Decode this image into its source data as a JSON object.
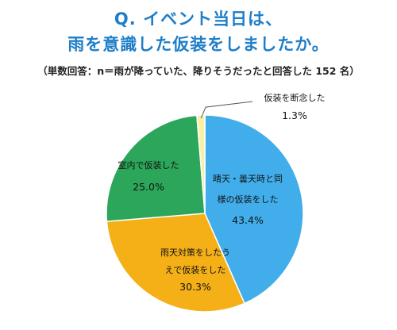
{
  "title_line1": "Q. イベント当日は、",
  "title_line2": "雨を意識した仮装をしましたか。",
  "subtitle": "（単数回答：n＝雨が降っていた、降りそうだったと回答した 152 名）",
  "colors": {
    "title": "#1E7EC8",
    "slice_1": "#41AEEB",
    "slice_2": "#F5B017",
    "slice_3": "#2BA65A",
    "slice_4": "#F7F1A6",
    "leader": "#555555"
  },
  "chart_data": {
    "type": "pie",
    "start_angle_deg": 0,
    "direction": "clockwise",
    "slices": [
      {
        "label_lines": [
          "晴天・曇天時と同",
          "様の仮装をした"
        ],
        "value": 43.4,
        "value_text": "43.4%",
        "color_key": "slice_1"
      },
      {
        "label_lines": [
          "雨天対策をしたう",
          "えで仮装をした"
        ],
        "value": 30.3,
        "value_text": "30.3%",
        "color_key": "slice_2"
      },
      {
        "label_lines": [
          "室内で仮装した"
        ],
        "value": 25.0,
        "value_text": "25.0%",
        "color_key": "slice_3"
      },
      {
        "label_lines": [
          "仮装を断念した"
        ],
        "value": 1.3,
        "value_text": "1.3%",
        "color_key": "slice_4"
      }
    ]
  }
}
